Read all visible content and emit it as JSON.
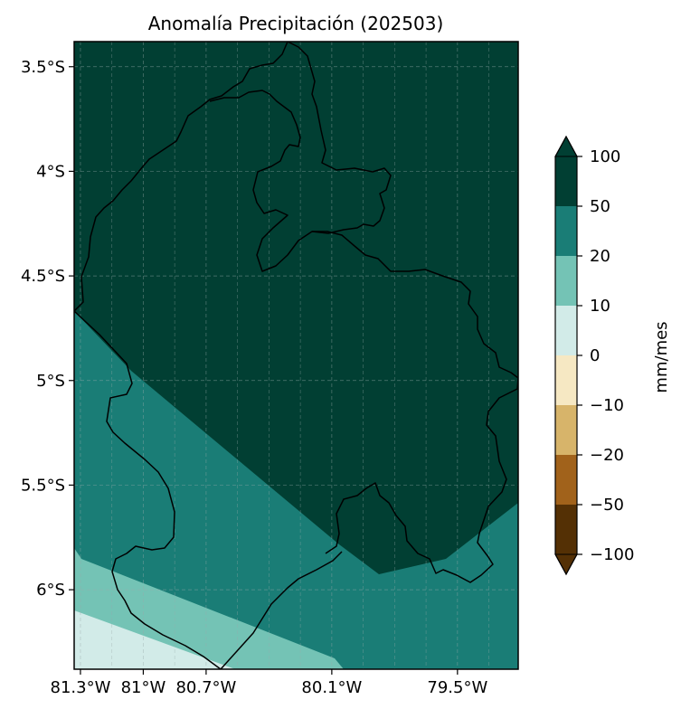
{
  "title": "Anomalía Precipitación (202503)",
  "axes": {
    "y_ticks": [
      {
        "value": -3.5,
        "label": "3.5°S"
      },
      {
        "value": -4.0,
        "label": "4°S"
      },
      {
        "value": -4.5,
        "label": "4.5°S"
      },
      {
        "value": -5.0,
        "label": "5°S"
      },
      {
        "value": -5.5,
        "label": "5.5°S"
      },
      {
        "value": -6.0,
        "label": "6°S"
      }
    ],
    "x_ticks": [
      {
        "value": -81.3,
        "label": "81.3°W"
      },
      {
        "value": -81.0,
        "label": "81°W"
      },
      {
        "value": -80.7,
        "label": "80.7°W"
      },
      {
        "value": -80.1,
        "label": "80.1°W"
      },
      {
        "value": -79.5,
        "label": "79.5°W"
      }
    ],
    "lon_range": [
      -81.33,
      -79.21
    ],
    "lat_range": [
      -6.38,
      -3.38
    ],
    "grid": "dashed"
  },
  "colorbar": {
    "label": "mm/mes",
    "tick_labels": [
      "−100",
      "−50",
      "−20",
      "−10",
      "0",
      "10",
      "20",
      "50",
      "100"
    ],
    "bins": [
      {
        "from": -100,
        "to": -50,
        "color": "#543005"
      },
      {
        "from": -50,
        "to": -20,
        "color": "#a1621b"
      },
      {
        "from": -20,
        "to": -10,
        "color": "#d7b46a"
      },
      {
        "from": -10,
        "to": 0,
        "color": "#f6e8c3"
      },
      {
        "from": 0,
        "to": 10,
        "color": "#d2ebe8"
      },
      {
        "from": 10,
        "to": 20,
        "color": "#74c3b5"
      },
      {
        "from": 20,
        "to": 50,
        "color": "#1a7d76"
      },
      {
        "from": 50,
        "to": 100,
        "color": "#013f33"
      }
    ],
    "extend": "both"
  },
  "map_fields": {
    "background_color": "#013f33",
    "zones": [
      {
        "name": "zone-50-100",
        "range": "50 a 100",
        "color": "#013f33"
      },
      {
        "name": "zone-20-50",
        "range": "20 a 50",
        "color": "#1a7d76"
      },
      {
        "name": "zone-10-20",
        "range": "10 a 20",
        "color": "#74c3b5"
      },
      {
        "name": "zone-0-10",
        "range": "0 a 10",
        "color": "#d2ebe8"
      }
    ]
  }
}
